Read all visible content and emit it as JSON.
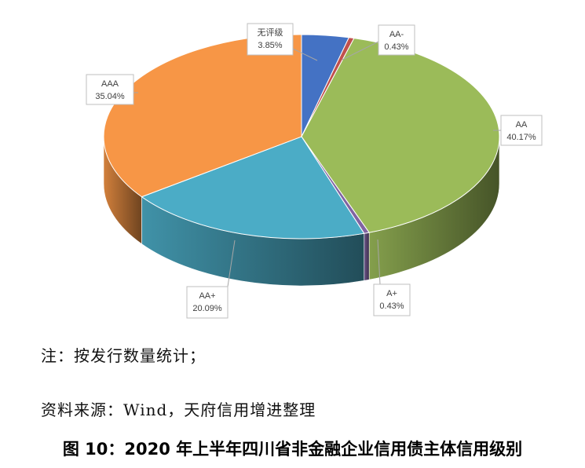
{
  "chart_data": {
    "type": "pie",
    "title": "",
    "slices": [
      {
        "label": "无评级",
        "value": 3.85,
        "value_text": "3.85%",
        "color": "#4472C4"
      },
      {
        "label": "AA-",
        "value": 0.43,
        "value_text": "0.43%",
        "color": "#C0504D"
      },
      {
        "label": "AA",
        "value": 40.17,
        "value_text": "40.17%",
        "color": "#9BBB59"
      },
      {
        "label": "A+",
        "value": 0.43,
        "value_text": "0.43%",
        "color": "#8064A2"
      },
      {
        "label": "AA+",
        "value": 20.09,
        "value_text": "20.09%",
        "color": "#4BACC6"
      },
      {
        "label": "AAA",
        "value": 35.04,
        "value_text": "35.04%",
        "color": "#F79646"
      }
    ]
  },
  "notes": {
    "note": "注：按发行数量统计；",
    "source": "资料来源：Wind，天府信用增进整理"
  },
  "caption": "图 10：2020 年上半年四川省非金融企业信用债主体信用级别"
}
